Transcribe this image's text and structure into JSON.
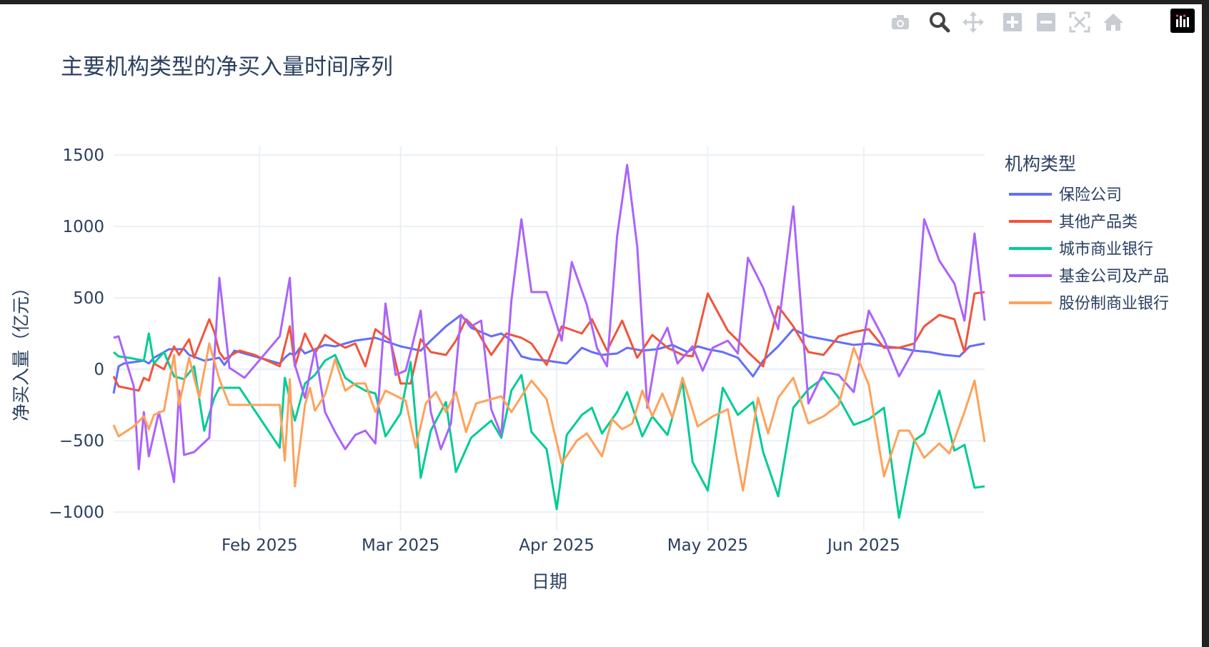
{
  "toolbar": {
    "buttons": [
      {
        "name": "camera-icon",
        "label": "Download plot as a png"
      },
      {
        "name": "zoom-icon",
        "label": "Zoom"
      },
      {
        "name": "pan-icon",
        "label": "Pan"
      },
      {
        "name": "zoom-in-icon",
        "label": "Zoom in"
      },
      {
        "name": "zoom-out-icon",
        "label": "Zoom out"
      },
      {
        "name": "autoscale-icon",
        "label": "Autoscale"
      },
      {
        "name": "home-icon",
        "label": "Reset axes"
      },
      {
        "name": "plotly-logo-icon",
        "label": "Produced with Plotly"
      }
    ]
  },
  "chart_data": {
    "type": "line",
    "title": "主要机构类型的净买入量时间序列",
    "xlabel": "日期",
    "ylabel": "净买入量（亿元）",
    "legend_title": "机构类型",
    "legend_position": "right",
    "grid": true,
    "xlim": [
      "2025-01-03",
      "2025-06-25"
    ],
    "ylim": [
      -1130,
      1560
    ],
    "x_ticks": [
      {
        "date": "2025-02-01",
        "label": "Feb 2025"
      },
      {
        "date": "2025-03-01",
        "label": "Mar 2025"
      },
      {
        "date": "2025-04-01",
        "label": "Apr 2025"
      },
      {
        "date": "2025-05-01",
        "label": "May 2025"
      },
      {
        "date": "2025-06-01",
        "label": "Jun 2025"
      }
    ],
    "y_ticks": [
      {
        "value": 1500,
        "label": "1500"
      },
      {
        "value": 1000,
        "label": "1000"
      },
      {
        "value": 500,
        "label": "500"
      },
      {
        "value": 0,
        "label": "0"
      },
      {
        "value": -500,
        "label": "−500"
      },
      {
        "value": -1000,
        "label": "−1000"
      }
    ],
    "series": [
      {
        "name": "保险公司",
        "color": "#636efa",
        "x": [
          "2025-01-03",
          "2025-01-04",
          "2025-01-05",
          "2025-01-09",
          "2025-01-10",
          "2025-01-11",
          "2025-01-14",
          "2025-01-17",
          "2025-01-18",
          "2025-01-21",
          "2025-01-24",
          "2025-01-25",
          "2025-01-27",
          "2025-02-05",
          "2025-02-06",
          "2025-02-07",
          "2025-02-08",
          "2025-02-09",
          "2025-02-10",
          "2025-02-12",
          "2025-02-14",
          "2025-02-16",
          "2025-02-18",
          "2025-02-20",
          "2025-02-22",
          "2025-02-24",
          "2025-03-01",
          "2025-03-05",
          "2025-03-07",
          "2025-03-10",
          "2025-03-13",
          "2025-03-15",
          "2025-03-17",
          "2025-03-19",
          "2025-03-21",
          "2025-03-23",
          "2025-03-25",
          "2025-03-27",
          "2025-03-30",
          "2025-04-01",
          "2025-04-03",
          "2025-04-06",
          "2025-04-08",
          "2025-04-10",
          "2025-04-13",
          "2025-04-15",
          "2025-04-18",
          "2025-04-21",
          "2025-04-24",
          "2025-04-27",
          "2025-04-29",
          "2025-05-01",
          "2025-05-04",
          "2025-05-07",
          "2025-05-10",
          "2025-05-12",
          "2025-05-15",
          "2025-05-18",
          "2025-05-21",
          "2025-05-24",
          "2025-05-27",
          "2025-05-30",
          "2025-06-02",
          "2025-06-05",
          "2025-06-08",
          "2025-06-11",
          "2025-06-14",
          "2025-06-17",
          "2025-06-20",
          "2025-06-22",
          "2025-06-25"
        ],
        "y": [
          -170,
          20,
          40,
          60,
          40,
          80,
          140,
          140,
          100,
          60,
          80,
          30,
          130,
          40,
          80,
          110,
          100,
          150,
          110,
          140,
          170,
          160,
          180,
          200,
          210,
          220,
          160,
          130,
          200,
          300,
          380,
          290,
          260,
          230,
          250,
          200,
          90,
          70,
          60,
          50,
          40,
          150,
          120,
          100,
          110,
          150,
          130,
          140,
          170,
          120,
          160,
          140,
          120,
          80,
          -50,
          60,
          160,
          280,
          230,
          210,
          190,
          170,
          180,
          160,
          150,
          130,
          120,
          100,
          90,
          160,
          180
        ]
      },
      {
        "name": "其他产品类",
        "color": "#ef553b",
        "x": [
          "2025-01-03",
          "2025-01-04",
          "2025-01-08",
          "2025-01-09",
          "2025-01-10",
          "2025-01-11",
          "2025-01-13",
          "2025-01-15",
          "2025-01-16",
          "2025-01-18",
          "2025-01-19",
          "2025-01-22",
          "2025-01-23",
          "2025-01-24",
          "2025-01-25",
          "2025-01-28",
          "2025-01-31",
          "2025-02-05",
          "2025-02-07",
          "2025-02-08",
          "2025-02-10",
          "2025-02-12",
          "2025-02-14",
          "2025-02-16",
          "2025-02-18",
          "2025-02-20",
          "2025-02-22",
          "2025-02-24",
          "2025-02-27",
          "2025-03-01",
          "2025-03-03",
          "2025-03-05",
          "2025-03-07",
          "2025-03-10",
          "2025-03-12",
          "2025-03-14",
          "2025-03-16",
          "2025-03-19",
          "2025-03-22",
          "2025-03-25",
          "2025-03-27",
          "2025-03-30",
          "2025-04-02",
          "2025-04-06",
          "2025-04-08",
          "2025-04-11",
          "2025-04-14",
          "2025-04-17",
          "2025-04-20",
          "2025-04-23",
          "2025-04-26",
          "2025-04-28",
          "2025-05-01",
          "2025-05-05",
          "2025-05-07",
          "2025-05-09",
          "2025-05-12",
          "2025-05-15",
          "2025-05-18",
          "2025-05-21",
          "2025-05-24",
          "2025-05-27",
          "2025-05-30",
          "2025-06-02",
          "2025-06-05",
          "2025-06-08",
          "2025-06-11",
          "2025-06-13",
          "2025-06-16",
          "2025-06-19",
          "2025-06-21",
          "2025-06-23",
          "2025-06-25"
        ],
        "y": [
          -50,
          -120,
          -150,
          -60,
          -80,
          40,
          0,
          160,
          100,
          210,
          80,
          350,
          260,
          120,
          70,
          130,
          100,
          20,
          300,
          20,
          250,
          110,
          240,
          190,
          150,
          180,
          20,
          280,
          200,
          -100,
          -100,
          210,
          120,
          100,
          200,
          350,
          280,
          100,
          250,
          220,
          180,
          30,
          300,
          250,
          350,
          130,
          340,
          80,
          240,
          150,
          100,
          90,
          530,
          270,
          200,
          120,
          20,
          440,
          300,
          120,
          100,
          230,
          260,
          280,
          150,
          150,
          180,
          300,
          380,
          350,
          120,
          530,
          540
        ]
      },
      {
        "name": "城市商业银行",
        "color": "#00cc96",
        "x": [
          "2025-01-03",
          "2025-01-04",
          "2025-01-06",
          "2025-01-09",
          "2025-01-10",
          "2025-01-11",
          "2025-01-12",
          "2025-01-13",
          "2025-01-15",
          "2025-01-17",
          "2025-01-19",
          "2025-01-21",
          "2025-01-23",
          "2025-01-24",
          "2025-01-25",
          "2025-01-28",
          "2025-02-05",
          "2025-02-06",
          "2025-02-08",
          "2025-02-10",
          "2025-02-12",
          "2025-02-14",
          "2025-02-16",
          "2025-02-18",
          "2025-02-20",
          "2025-02-22",
          "2025-02-24",
          "2025-02-26",
          "2025-03-01",
          "2025-03-03",
          "2025-03-05",
          "2025-03-07",
          "2025-03-10",
          "2025-03-12",
          "2025-03-15",
          "2025-03-17",
          "2025-03-19",
          "2025-03-21",
          "2025-03-23",
          "2025-03-25",
          "2025-03-27",
          "2025-03-30",
          "2025-04-01",
          "2025-04-03",
          "2025-04-06",
          "2025-04-08",
          "2025-04-10",
          "2025-04-13",
          "2025-04-15",
          "2025-04-18",
          "2025-04-20",
          "2025-04-23",
          "2025-04-26",
          "2025-04-28",
          "2025-05-01",
          "2025-05-04",
          "2025-05-07",
          "2025-05-10",
          "2025-05-12",
          "2025-05-15",
          "2025-05-18",
          "2025-05-21",
          "2025-05-24",
          "2025-05-27",
          "2025-05-30",
          "2025-06-02",
          "2025-06-05",
          "2025-06-08",
          "2025-06-11",
          "2025-06-13",
          "2025-06-16",
          "2025-06-19",
          "2025-06-21",
          "2025-06-23",
          "2025-06-25"
        ],
        "y": [
          120,
          90,
          80,
          60,
          250,
          40,
          80,
          120,
          -50,
          -70,
          20,
          -430,
          -200,
          -130,
          -130,
          -130,
          -550,
          -60,
          -360,
          -100,
          -40,
          60,
          100,
          -60,
          -110,
          -150,
          -170,
          -470,
          -310,
          50,
          -760,
          -430,
          -230,
          -720,
          -480,
          -420,
          -360,
          -480,
          -150,
          -40,
          -440,
          -560,
          -980,
          -460,
          -320,
          -270,
          -450,
          -300,
          -160,
          -470,
          -330,
          -460,
          -90,
          -650,
          -850,
          -130,
          -320,
          -230,
          -580,
          -890,
          -270,
          -140,
          -60,
          -200,
          -390,
          -350,
          -270,
          -1040,
          -500,
          -450,
          -150,
          -570,
          -530,
          -830,
          -820
        ]
      },
      {
        "name": "基金公司及产品",
        "color": "#ab63fa",
        "x": [
          "2025-01-03",
          "2025-01-04",
          "2025-01-07",
          "2025-01-08",
          "2025-01-09",
          "2025-01-10",
          "2025-01-12",
          "2025-01-15",
          "2025-01-16",
          "2025-01-17",
          "2025-01-19",
          "2025-01-22",
          "2025-01-24",
          "2025-01-26",
          "2025-01-29",
          "2025-02-05",
          "2025-02-07",
          "2025-02-08",
          "2025-02-10",
          "2025-02-12",
          "2025-02-14",
          "2025-02-16",
          "2025-02-18",
          "2025-02-20",
          "2025-02-22",
          "2025-02-24",
          "2025-02-26",
          "2025-02-28",
          "2025-03-02",
          "2025-03-03",
          "2025-03-05",
          "2025-03-07",
          "2025-03-09",
          "2025-03-11",
          "2025-03-13",
          "2025-03-15",
          "2025-03-17",
          "2025-03-19",
          "2025-03-21",
          "2025-03-23",
          "2025-03-25",
          "2025-03-27",
          "2025-03-30",
          "2025-04-02",
          "2025-04-04",
          "2025-04-07",
          "2025-04-09",
          "2025-04-11",
          "2025-04-13",
          "2025-04-15",
          "2025-04-17",
          "2025-04-19",
          "2025-04-21",
          "2025-04-23",
          "2025-04-25",
          "2025-04-28",
          "2025-04-30",
          "2025-05-02",
          "2025-05-05",
          "2025-05-07",
          "2025-05-09",
          "2025-05-12",
          "2025-05-15",
          "2025-05-18",
          "2025-05-21",
          "2025-05-24",
          "2025-05-27",
          "2025-05-30",
          "2025-06-02",
          "2025-06-05",
          "2025-06-08",
          "2025-06-11",
          "2025-06-13",
          "2025-06-16",
          "2025-06-19",
          "2025-06-21",
          "2025-06-23",
          "2025-06-25"
        ],
        "y": [
          220,
          230,
          -120,
          -700,
          -300,
          -610,
          -300,
          -790,
          -150,
          -600,
          -580,
          -480,
          640,
          10,
          -60,
          230,
          640,
          30,
          -200,
          140,
          -300,
          -440,
          -560,
          -460,
          -430,
          -520,
          460,
          -40,
          -10,
          120,
          410,
          -300,
          -560,
          -380,
          380,
          300,
          340,
          -280,
          -460,
          480,
          1050,
          540,
          540,
          200,
          750,
          450,
          150,
          20,
          930,
          1430,
          860,
          -270,
          150,
          290,
          40,
          160,
          -10,
          150,
          200,
          110,
          780,
          570,
          280,
          1140,
          -240,
          -20,
          -40,
          -160,
          410,
          210,
          -50,
          140,
          1050,
          760,
          600,
          340,
          950,
          340
        ]
      },
      {
        "name": "股份制商业银行",
        "color": "#ffa15a",
        "x": [
          "2025-01-03",
          "2025-01-04",
          "2025-01-07",
          "2025-01-09",
          "2025-01-10",
          "2025-01-11",
          "2025-01-13",
          "2025-01-15",
          "2025-01-16",
          "2025-01-18",
          "2025-01-20",
          "2025-01-22",
          "2025-01-24",
          "2025-01-26",
          "2025-01-29",
          "2025-02-05",
          "2025-02-06",
          "2025-02-07",
          "2025-02-08",
          "2025-02-10",
          "2025-02-11",
          "2025-02-12",
          "2025-02-14",
          "2025-02-16",
          "2025-02-18",
          "2025-02-20",
          "2025-02-22",
          "2025-02-24",
          "2025-02-26",
          "2025-03-02",
          "2025-03-04",
          "2025-03-06",
          "2025-03-08",
          "2025-03-10",
          "2025-03-12",
          "2025-03-14",
          "2025-03-16",
          "2025-03-18",
          "2025-03-21",
          "2025-03-23",
          "2025-03-25",
          "2025-03-27",
          "2025-03-30",
          "2025-04-02",
          "2025-04-05",
          "2025-04-07",
          "2025-04-10",
          "2025-04-12",
          "2025-04-14",
          "2025-04-16",
          "2025-04-18",
          "2025-04-20",
          "2025-04-22",
          "2025-04-24",
          "2025-04-26",
          "2025-04-29",
          "2025-05-02",
          "2025-05-05",
          "2025-05-08",
          "2025-05-11",
          "2025-05-13",
          "2025-05-15",
          "2025-05-18",
          "2025-05-21",
          "2025-05-24",
          "2025-05-27",
          "2025-05-30",
          "2025-06-02",
          "2025-06-05",
          "2025-06-08",
          "2025-06-10",
          "2025-06-13",
          "2025-06-16",
          "2025-06-18",
          "2025-06-21",
          "2025-06-23",
          "2025-06-25"
        ],
        "y": [
          -390,
          -470,
          -400,
          -330,
          -420,
          -320,
          -290,
          100,
          -250,
          80,
          -200,
          180,
          -70,
          -250,
          -250,
          -250,
          -640,
          -70,
          -820,
          -250,
          -130,
          -290,
          -180,
          70,
          -150,
          -100,
          -100,
          -300,
          -150,
          -220,
          -550,
          -240,
          -160,
          -300,
          -160,
          -440,
          -240,
          -220,
          -190,
          -300,
          -190,
          -80,
          -210,
          -660,
          -500,
          -450,
          -610,
          -350,
          -420,
          -380,
          -150,
          -330,
          -170,
          -340,
          -60,
          -400,
          -330,
          -280,
          -850,
          -200,
          -450,
          -200,
          -60,
          -380,
          -330,
          -250,
          150,
          -110,
          -750,
          -430,
          -430,
          -620,
          -520,
          -590,
          -300,
          -80,
          -510
        ]
      }
    ]
  }
}
